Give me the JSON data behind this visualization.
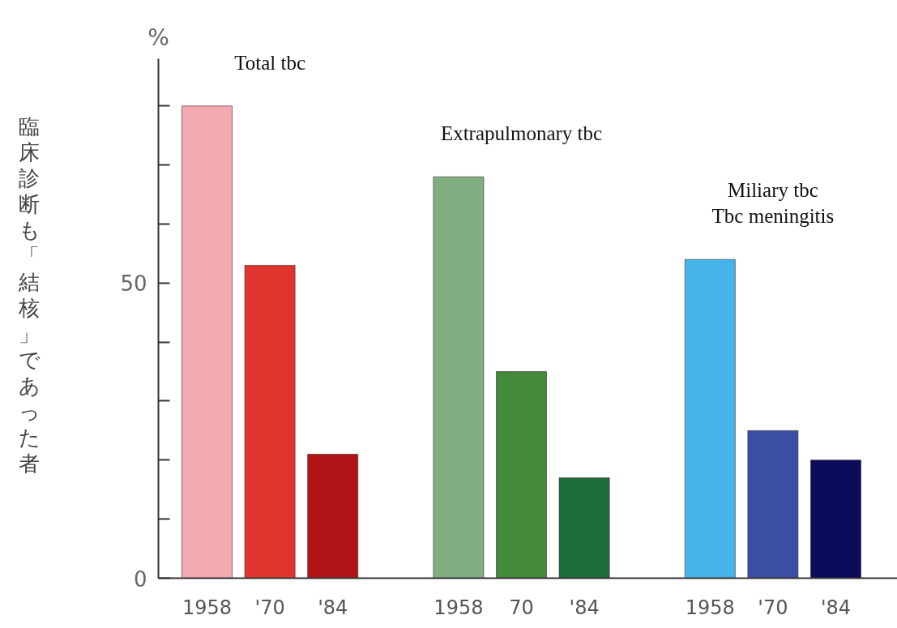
{
  "chart_data": {
    "type": "bar",
    "ylabel": "臨床診断も「結核」であった者",
    "annotations": [
      "%"
    ],
    "categories": [
      "1958",
      "'70",
      "'84",
      null,
      "1958",
      "70",
      "'84",
      null,
      "1958",
      "'70",
      "'84"
    ],
    "series": [
      {
        "name": "Total tbc",
        "values": [
          80,
          53,
          21,
          null,
          null,
          null,
          null,
          null,
          null,
          null,
          null
        ],
        "colors": [
          "#f2a9b0",
          "#e0352e",
          "#b3141a",
          null,
          null,
          null,
          null,
          null,
          null,
          null,
          null
        ]
      },
      {
        "name": "Extrapulmonary tbc",
        "values": [
          null,
          null,
          null,
          null,
          68,
          35,
          17,
          null,
          null,
          null,
          null
        ],
        "colors": [
          null,
          null,
          null,
          null,
          "#80ae80",
          "#438a3a",
          "#1b6b3b",
          null,
          null,
          null,
          null
        ]
      },
      {
        "name": "Miliary tbc\nTbc meningitis",
        "values": [
          null,
          null,
          null,
          null,
          null,
          null,
          null,
          null,
          54,
          25,
          20
        ],
        "colors": [
          null,
          null,
          null,
          null,
          null,
          null,
          null,
          null,
          "#45b4ea",
          "#3a4ea4",
          "#0c0c5c"
        ]
      }
    ],
    "ylim": [
      0,
      88
    ],
    "yticks": [
      0,
      {
        "value": 10,
        "label": null
      },
      {
        "value": 20,
        "label": null
      },
      {
        "value": 30,
        "label": null
      },
      {
        "value": 40,
        "label": null
      },
      50,
      {
        "value": 60,
        "label": null
      },
      {
        "value": 70,
        "label": null
      },
      {
        "value": 80,
        "label": null
      }
    ],
    "grid": false
  }
}
